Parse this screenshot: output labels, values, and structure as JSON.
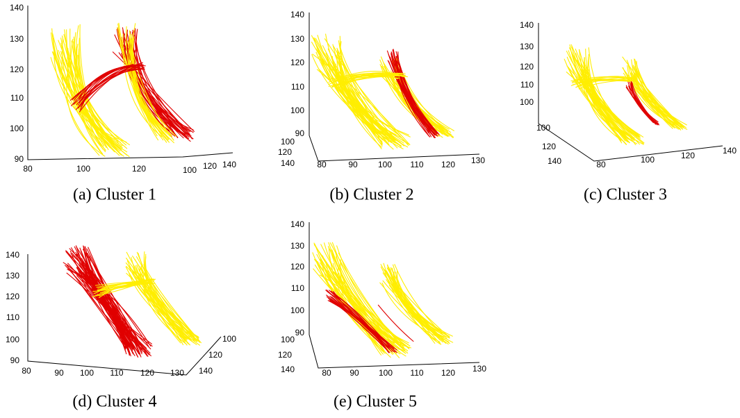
{
  "panels": [
    {
      "caption": "(a) Cluster 1",
      "zticks": [
        140,
        130,
        120,
        110,
        100,
        90
      ],
      "xticks": [
        80,
        100,
        120
      ],
      "yticks": [
        100,
        120,
        140
      ]
    },
    {
      "caption": "(b) Cluster 2",
      "zticks": [
        140,
        130,
        120,
        110,
        100,
        90
      ],
      "xticks": [
        80,
        90,
        100,
        110,
        120,
        130
      ],
      "yticks": [
        100,
        120,
        140
      ]
    },
    {
      "caption": "(c) Cluster 3",
      "zticks": [
        140,
        130,
        120,
        110,
        100
      ],
      "xticks": [
        80,
        100,
        120,
        140
      ],
      "yticks": [
        100,
        120,
        140
      ]
    },
    {
      "caption": "(d) Cluster 4",
      "zticks": [
        140,
        130,
        120,
        110,
        100,
        90
      ],
      "xticks": [
        80,
        90,
        100,
        110,
        120,
        130
      ],
      "yticks": [
        100,
        120,
        140
      ]
    },
    {
      "caption": "(e) Cluster 5",
      "zticks": [
        140,
        130,
        120,
        110,
        100,
        90
      ],
      "xticks": [
        80,
        90,
        100,
        110,
        120,
        130
      ],
      "yticks": [
        100,
        120,
        140
      ]
    }
  ]
}
